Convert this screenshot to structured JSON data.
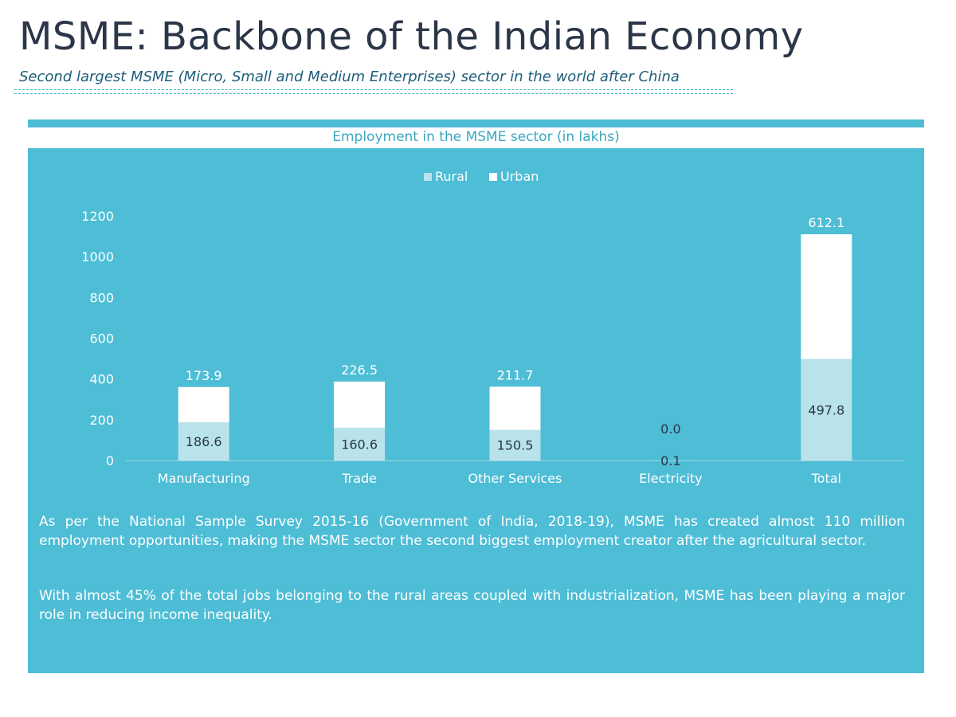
{
  "page": {
    "title": "MSME: Backbone of the Indian Economy",
    "subtitle": "Second largest MSME (Micro, Small and Medium Enterprises) sector in the world after China"
  },
  "chart_title": "Employment in the MSME sector (in lakhs)",
  "paragraphs": [
    "As per the National Sample Survey 2015-16 (Government of India, 2018-19), MSME has created almost 110 million employment opportunities, making the MSME sector the second biggest employment creator after the agricultural sector.",
    "With almost 45% of the total jobs belonging to the rural areas coupled with industrialization, MSME has been playing a major role in reducing income inequality."
  ],
  "chart_data": {
    "type": "bar",
    "stacked": true,
    "title": "Employment in the MSME sector (in lakhs)",
    "categories": [
      "Manufacturing",
      "Trade",
      "Other Services",
      "Electricity",
      "Total"
    ],
    "series": [
      {
        "name": "Rural",
        "values": [
          186.6,
          160.6,
          150.5,
          0.1,
          497.8
        ],
        "color": "#b9e3eb"
      },
      {
        "name": "Urban",
        "values": [
          173.9,
          226.5,
          211.7,
          0.0,
          612.1
        ],
        "color": "#ffffff"
      }
    ],
    "ylim": [
      0,
      1200
    ],
    "yticks": [
      0,
      200,
      400,
      600,
      800,
      1000,
      1200
    ],
    "legend_position": "top",
    "grid": false,
    "colors": {
      "background": "#4ebdd6",
      "axis_text": "#ffffff",
      "label_inner": "#2b3648",
      "label_outer": "#ffffff"
    }
  }
}
